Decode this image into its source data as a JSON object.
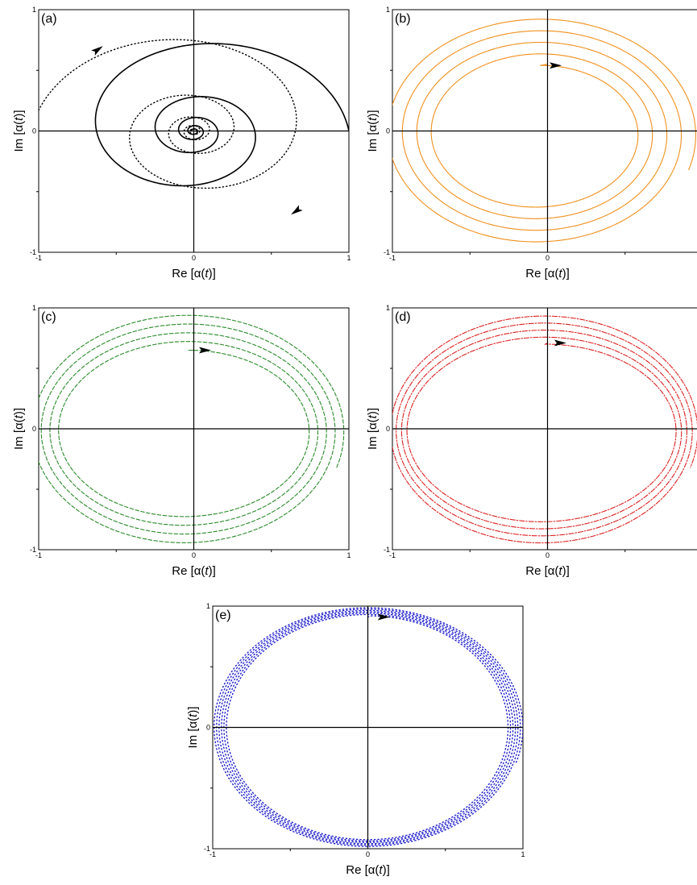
{
  "chart_data": [
    {
      "panel": "(a)",
      "type": "line",
      "xlabel": "Re [α(t)]",
      "ylabel": "Im [α(t)]",
      "xlim": [
        -1,
        1
      ],
      "ylim": [
        -1,
        1
      ],
      "xticks": [
        "-1",
        "0",
        "1"
      ],
      "yticks": [
        "-1",
        "0",
        "1"
      ],
      "colors": [
        "#000000",
        "#000000"
      ],
      "series": [
        {
          "style": "solid",
          "start": [
            1.0,
            0.0
          ],
          "end": [
            0.0,
            0.0
          ],
          "turns": 4.5,
          "direction": "counterclockwise",
          "ellipse": [
            1.0,
            0.9
          ]
        },
        {
          "style": "dotted",
          "start": [
            -1.0,
            0.17
          ],
          "end": [
            0.0,
            0.0
          ],
          "turns": 4.5,
          "direction": "clockwise",
          "ellipse": [
            1.0,
            0.9
          ]
        }
      ],
      "arrows": [
        {
          "at": [
            -0.62,
            0.67
          ],
          "heading": "up-right"
        },
        {
          "at": [
            0.66,
            -0.66
          ],
          "heading": "down-left"
        }
      ]
    },
    {
      "panel": "(b)",
      "type": "line",
      "xlabel": "Re [α(t)]",
      "ylabel": "Im [α(t)]",
      "xlim": [
        -1,
        1
      ],
      "ylim": [
        -1,
        1
      ],
      "xticks": [
        "-1",
        "0"
      ],
      "yticks": [
        "-1",
        "0",
        "1"
      ],
      "colors": [
        "#f0901e"
      ],
      "series": [
        {
          "style": "solid",
          "start": [
            0.0,
            0.55
          ],
          "turns": 4.3,
          "direction": "clockwise",
          "inner": {
            "a": 0.62,
            "b": 0.56,
            "cx": -0.06,
            "cy": -0.02
          },
          "outer": {
            "a": 1.02,
            "b": 0.97,
            "cx": -0.06,
            "cy": -0.02
          }
        }
      ],
      "arrows": [
        {
          "at": [
            0.05,
            0.54
          ],
          "heading": "right"
        }
      ]
    },
    {
      "panel": "(c)",
      "type": "line",
      "xlabel": "Re [α(t)]",
      "ylabel": "Im [α(t)]",
      "xlim": [
        -1,
        1
      ],
      "ylim": [
        -1,
        1
      ],
      "xticks": [
        "-1",
        "0",
        "1"
      ],
      "yticks": [
        "-1",
        "0",
        "1"
      ],
      "colors": [
        "#2a8a2a"
      ],
      "series": [
        {
          "style": "dashed",
          "start": [
            0.0,
            0.65
          ],
          "turns": 4.3,
          "direction": "clockwise",
          "inner": {
            "a": 0.78,
            "b": 0.67,
            "cx": -0.05,
            "cy": -0.02
          },
          "outer": {
            "a": 1.02,
            "b": 0.98,
            "cx": -0.05,
            "cy": -0.02
          }
        }
      ],
      "arrows": [
        {
          "at": [
            0.07,
            0.65
          ],
          "heading": "right"
        }
      ]
    },
    {
      "panel": "(d)",
      "type": "line",
      "xlabel": "Re [α(t)]",
      "ylabel": "Im [α(t)]",
      "xlim": [
        -1,
        1
      ],
      "ylim": [
        -1,
        1
      ],
      "xticks": [
        "-1",
        "0"
      ],
      "yticks": [
        "-1",
        "0",
        "1"
      ],
      "colors": [
        "#dd2020"
      ],
      "series": [
        {
          "style": "dashdot",
          "start": [
            0.0,
            0.71
          ],
          "turns": 4.3,
          "direction": "clockwise",
          "inner": {
            "a": 0.85,
            "b": 0.72,
            "cx": -0.03,
            "cy": -0.02
          },
          "outer": {
            "a": 1.0,
            "b": 0.97,
            "cx": -0.03,
            "cy": -0.02
          }
        }
      ],
      "arrows": [
        {
          "at": [
            0.08,
            0.71
          ],
          "heading": "right"
        }
      ]
    },
    {
      "panel": "(e)",
      "type": "line",
      "xlabel": "Re [α(t)]",
      "ylabel": "Im [α(t)]",
      "xlim": [
        -1,
        1
      ],
      "ylim": [
        -1,
        1
      ],
      "xticks": [
        "-1",
        "0",
        "1"
      ],
      "yticks": [
        "-1",
        "0",
        "1"
      ],
      "colors": [
        "#2020cc"
      ],
      "series": [
        {
          "style": "dotted",
          "start": [
            0.0,
            0.91
          ],
          "turns": 6.3,
          "direction": "clockwise",
          "inner": {
            "a": 0.9,
            "b": 0.92,
            "cx": 0.0,
            "cy": 0.0
          },
          "outer": {
            "a": 1.0,
            "b": 0.99,
            "cx": 0.0,
            "cy": 0.0
          }
        }
      ],
      "arrows": [
        {
          "at": [
            0.1,
            0.91
          ],
          "heading": "right"
        }
      ]
    }
  ]
}
